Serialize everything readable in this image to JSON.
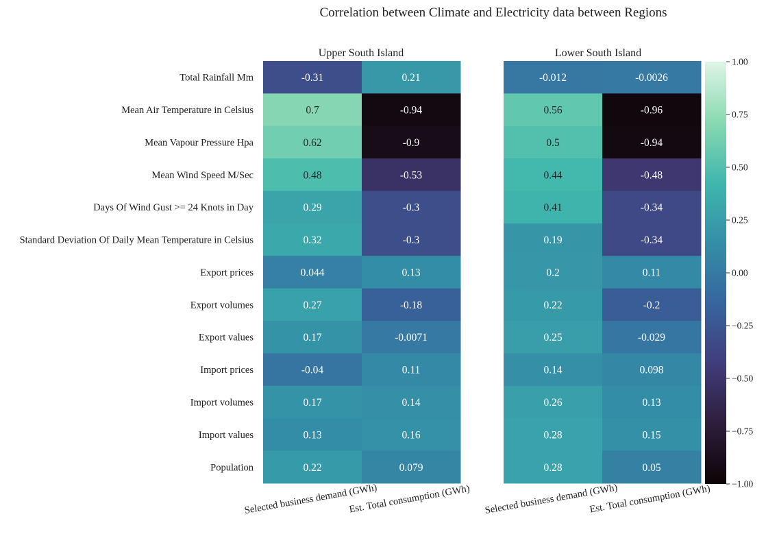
{
  "chart_data": {
    "type": "heatmap",
    "title": "Correlation between Climate and Electricity data between Regions",
    "rows": [
      "Total Rainfall Mm",
      "Mean Air Temperature in Celsius",
      "Mean Vapour Pressure Hpa",
      "Mean Wind Speed M/Sec",
      "Days Of Wind Gust >= 24 Knots in Day",
      "Standard Deviation Of Daily Mean Temperature in Celsius",
      "Export prices",
      "Export volumes",
      "Export values",
      "Import prices",
      "Import volumes",
      "Import values",
      "Population"
    ],
    "columns": [
      "Selected business demand (GWh)",
      "Est. Total consumption (GWh)"
    ],
    "panels": [
      {
        "title": "Upper South Island",
        "values": [
          [
            -0.31,
            0.21
          ],
          [
            0.7,
            -0.94
          ],
          [
            0.62,
            -0.9
          ],
          [
            0.48,
            -0.53
          ],
          [
            0.29,
            -0.3
          ],
          [
            0.32,
            -0.3
          ],
          [
            0.044,
            0.13
          ],
          [
            0.27,
            -0.18
          ],
          [
            0.17,
            -0.0071
          ],
          [
            -0.04,
            0.11
          ],
          [
            0.17,
            0.14
          ],
          [
            0.13,
            0.16
          ],
          [
            0.22,
            0.079
          ]
        ]
      },
      {
        "title": "Lower South Island",
        "values": [
          [
            -0.012,
            -0.0026
          ],
          [
            0.56,
            -0.96
          ],
          [
            0.5,
            -0.94
          ],
          [
            0.44,
            -0.48
          ],
          [
            0.41,
            -0.34
          ],
          [
            0.19,
            -0.34
          ],
          [
            0.2,
            0.11
          ],
          [
            0.22,
            -0.2
          ],
          [
            0.25,
            -0.029
          ],
          [
            0.14,
            0.098
          ],
          [
            0.26,
            0.13
          ],
          [
            0.28,
            0.15
          ],
          [
            0.28,
            0.05
          ]
        ]
      }
    ],
    "colorbar": {
      "range": [
        -1.0,
        1.0
      ],
      "ticks": [
        "1.00",
        "0.75",
        "0.50",
        "0.25",
        "0.00",
        "−0.25",
        "−0.50",
        "−0.75",
        "−1.00"
      ],
      "colormap": "mako",
      "stops": [
        "#0b0405",
        "#2e1e3c",
        "#413d7b",
        "#37659e",
        "#348fa7",
        "#40b7ad",
        "#8ad9b1",
        "#def5e5"
      ]
    }
  }
}
